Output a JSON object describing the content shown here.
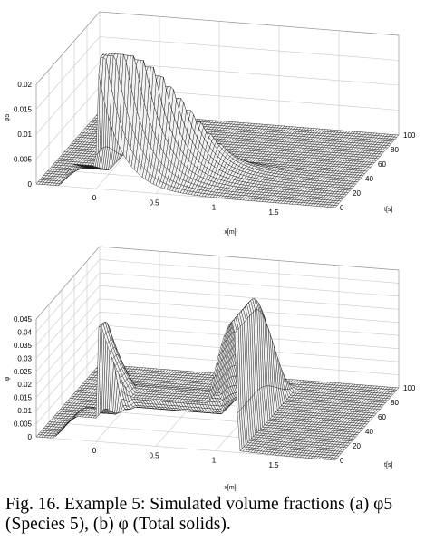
{
  "chart_data": [
    {
      "type": "surface",
      "panel": "a",
      "xlabel": "x[m]",
      "ylabel": "t[s]",
      "zlabel": "φ5",
      "x_ticks": [
        "0",
        "0.5",
        "1",
        "1.5"
      ],
      "t_ticks": [
        "0",
        "20",
        "40",
        "60",
        "80",
        "100"
      ],
      "z_ticks": [
        "0",
        "0.005",
        "0.01",
        "0.015",
        "0.02"
      ],
      "xlim": [
        -0.5,
        2.0
      ],
      "tlim": [
        0,
        100
      ],
      "zlim": [
        0,
        0.02
      ],
      "grid": true,
      "values": {
        "initial_layer_x": [
          -0.2,
          0.0
        ],
        "initial_layer_z": 0.0045,
        "sediment_peak_x": 0.0,
        "sediment_peak_z": 0.026,
        "clear_front_end_x": 1.35,
        "max_t_with_solids": 50
      }
    },
    {
      "type": "surface",
      "panel": "b",
      "xlabel": "x[m]",
      "ylabel": "t[s]",
      "zlabel": "φ",
      "x_ticks": [
        "0",
        "0.5",
        "1",
        "1.5"
      ],
      "t_ticks": [
        "0",
        "20",
        "40",
        "60",
        "80",
        "100"
      ],
      "z_ticks": [
        "0",
        "0.005",
        "0.01",
        "0.015",
        "0.02",
        "0.025",
        "0.03",
        "0.035",
        "0.04",
        "0.045"
      ],
      "xlim": [
        -0.5,
        2.0
      ],
      "tlim": [
        0,
        100
      ],
      "zlim": [
        0,
        0.045
      ],
      "grid": true,
      "values": {
        "initial_layer_z": 0.009,
        "sediment_peak_x": 0.0,
        "sediment_peak_z": 0.052,
        "right_front_x": 1.15,
        "right_front_z": 0.05
      }
    }
  ],
  "caption": {
    "line1": "Fig. 16. Example 5: Simulated volume fractions (a) φ5",
    "line2": "(Species 5), (b) φ (Total solids)."
  },
  "colors": {
    "surface": "#f2f2f2",
    "mesh": "#000000",
    "grid": "#c8c8c8",
    "background": "#ffffff"
  }
}
